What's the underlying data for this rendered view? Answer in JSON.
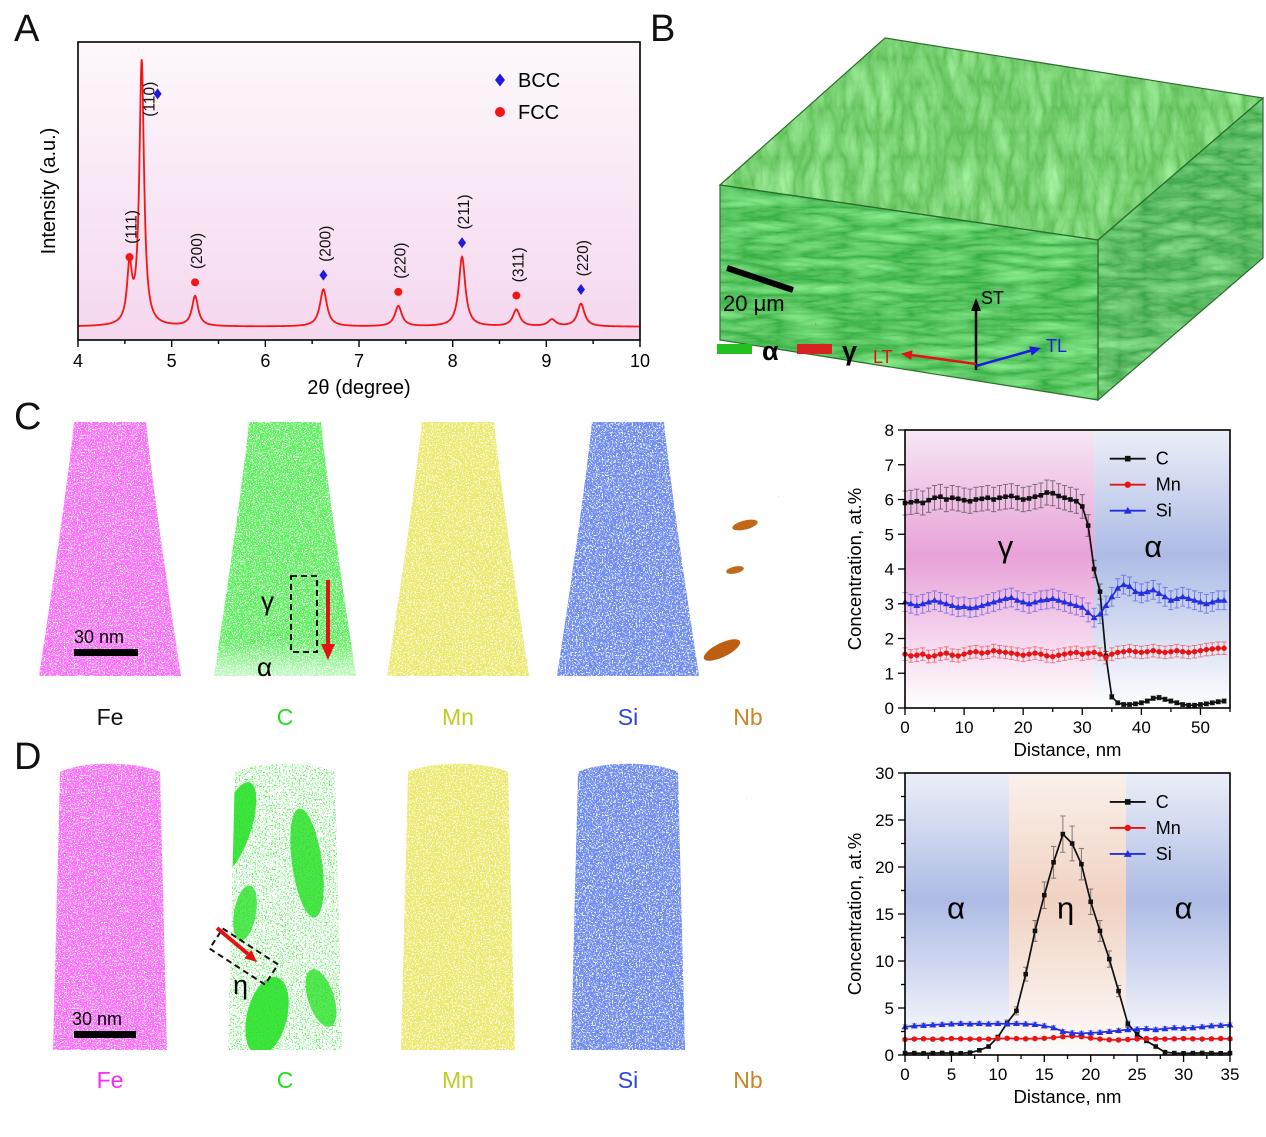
{
  "panels": {
    "a": {
      "letter": "A"
    },
    "b": {
      "letter": "B",
      "scale_bar_label": "20 μm",
      "phase_legend": [
        {
          "label": "α",
          "color": "#22c122"
        },
        {
          "label": "γ",
          "color": "#d82222"
        }
      ],
      "axis_labels": {
        "up": "ST",
        "left": "LT",
        "right": "TL"
      },
      "axis_colors": {
        "up": "#000000",
        "left": "#e01414",
        "right": "#1c1cdf"
      }
    },
    "c": {
      "letter": "C",
      "scale_bar_label": "30 nm",
      "maps": [
        {
          "element": "Fe",
          "color": "#f émotion92bf9"
        },
        {
          "element": "C",
          "color": "#1fe01f"
        },
        {
          "element": "Mn",
          "color": "#bfcc22"
        },
        {
          "element": "Si",
          "color": "#2b46dd"
        },
        {
          "element": "Nb",
          "color": "#cc8426"
        }
      ],
      "map_annotations": {
        "gamma": "γ",
        "alpha": "α"
      }
    },
    "d": {
      "letter": "D",
      "scale_bar_label": "30 nm",
      "maps": [
        {
          "element": "Fe",
          "color": "#f92bf9"
        },
        {
          "element": "C",
          "color": "#1fe01f"
        },
        {
          "element": "Mn",
          "color": "#bfcc22"
        },
        {
          "element": "Si",
          "color": "#2b46dd"
        },
        {
          "element": "Nb",
          "color": "#cc8426"
        }
      ],
      "map_annotations": {
        "eta": "η"
      }
    }
  },
  "chart_data": [
    {
      "id": "xrd",
      "type": "line",
      "panel": "A",
      "title": "",
      "xlabel": "2θ (degree)",
      "ylabel": "Intensity (a.u.)",
      "xlim": [
        4,
        10
      ],
      "xtick": 1,
      "xminor": 0.5,
      "line_color": "#f51515",
      "bg_gradient": [
        "#fdf8fc",
        "#f5d7ee"
      ],
      "baseline": 0.022,
      "legend": [
        {
          "label": "BCC",
          "marker": "diamond",
          "color": "#1c1cdf"
        },
        {
          "label": "FCC",
          "marker": "circle",
          "color": "#f51515"
        }
      ],
      "peaks": [
        {
          "two_theta": 4.55,
          "height": 0.23,
          "width": 0.032,
          "hkl": "(111)",
          "phase": "FCC"
        },
        {
          "two_theta": 4.68,
          "height": 1.1,
          "width": 0.03,
          "hkl": "(110)",
          "phase": "BCC",
          "mdx": 0.17,
          "mv": 0.97,
          "ldx": 0.06,
          "lv": 0.875
        },
        {
          "two_theta": 5.25,
          "height": 0.125,
          "width": 0.04,
          "hkl": "(200)",
          "phase": "FCC"
        },
        {
          "two_theta": 6.62,
          "height": 0.155,
          "width": 0.045,
          "hkl": "(200)",
          "phase": "BCC"
        },
        {
          "two_theta": 7.42,
          "height": 0.085,
          "width": 0.045,
          "hkl": "(220)",
          "phase": "FCC"
        },
        {
          "two_theta": 8.1,
          "height": 0.29,
          "width": 0.042,
          "hkl": "(211)",
          "phase": "BCC"
        },
        {
          "two_theta": 8.68,
          "height": 0.07,
          "width": 0.045,
          "hkl": "(311)",
          "phase": "FCC"
        },
        {
          "two_theta": 9.06,
          "height": 0.028,
          "width": 0.05,
          "hkl": "",
          "phase": ""
        },
        {
          "two_theta": 9.37,
          "height": 0.095,
          "width": 0.045,
          "hkl": "(220)",
          "phase": "BCC"
        }
      ]
    },
    {
      "id": "profile_c",
      "type": "line",
      "panel": "C",
      "xlabel": "Distance, nm",
      "ylabel": "Concentration, at.%",
      "xlim": [
        0,
        55
      ],
      "ylim": [
        0,
        8
      ],
      "xtick": 10,
      "xminor": 5,
      "ytick": 1,
      "x_step": 1,
      "regions": [
        {
          "label": "γ",
          "from": 0,
          "to": 32,
          "label_x": 17,
          "label_y": 4.35,
          "colors": [
            "#f6e7f3",
            "#e8a2d8",
            "#ffffff"
          ]
        },
        {
          "label": "α",
          "from": 32,
          "to": 55,
          "label_x": 42,
          "label_y": 4.35,
          "colors": [
            "#eceff8",
            "#adbbe5",
            "#ffffff"
          ]
        }
      ],
      "series": [
        {
          "name": "C",
          "marker": "square",
          "color": "#111111",
          "err_const": 0.05,
          "err_frac": 0.05,
          "values": [
            5.9,
            5.92,
            5.95,
            5.9,
            5.98,
            6.05,
            6.08,
            6.0,
            6.05,
            6.02,
            5.98,
            5.95,
            6.0,
            6.02,
            6.05,
            6.0,
            6.05,
            6.08,
            6.1,
            6.05,
            6.0,
            6.03,
            6.08,
            6.12,
            6.2,
            6.18,
            6.1,
            6.05,
            6.0,
            5.95,
            5.8,
            5.25,
            4.0,
            3.35,
            1.5,
            0.32,
            0.15,
            0.1,
            0.1,
            0.12,
            0.15,
            0.2,
            0.28,
            0.3,
            0.25,
            0.2,
            0.15,
            0.1,
            0.08,
            0.08,
            0.1,
            0.12,
            0.15,
            0.18,
            0.2
          ]
        },
        {
          "name": "Mn",
          "marker": "circle",
          "color": "#e81414",
          "err_const": 0.18,
          "values": [
            1.55,
            1.5,
            1.52,
            1.55,
            1.48,
            1.5,
            1.55,
            1.58,
            1.52,
            1.5,
            1.55,
            1.6,
            1.62,
            1.58,
            1.6,
            1.65,
            1.62,
            1.6,
            1.58,
            1.55,
            1.52,
            1.55,
            1.58,
            1.55,
            1.5,
            1.48,
            1.52,
            1.55,
            1.58,
            1.6,
            1.55,
            1.58,
            1.6,
            1.55,
            1.45,
            1.55,
            1.6,
            1.62,
            1.65,
            1.62,
            1.6,
            1.62,
            1.65,
            1.62,
            1.6,
            1.62,
            1.65,
            1.62,
            1.6,
            1.62,
            1.65,
            1.68,
            1.7,
            1.72,
            1.72
          ]
        },
        {
          "name": "Si",
          "marker": "triangle",
          "color": "#2430e0",
          "err_const": 0.27,
          "values": [
            3.05,
            3.0,
            2.95,
            3.0,
            3.05,
            3.1,
            3.05,
            3.0,
            2.95,
            2.9,
            2.92,
            2.88,
            2.9,
            2.95,
            3.0,
            3.05,
            3.1,
            3.15,
            3.18,
            3.1,
            3.05,
            3.0,
            3.05,
            3.1,
            3.12,
            3.15,
            3.1,
            3.05,
            3.0,
            2.95,
            2.9,
            2.75,
            2.6,
            2.7,
            2.95,
            3.2,
            3.45,
            3.55,
            3.5,
            3.35,
            3.3,
            3.35,
            3.4,
            3.3,
            3.2,
            3.1,
            3.15,
            3.2,
            3.15,
            3.1,
            3.05,
            3.0,
            3.05,
            3.1,
            3.1
          ]
        }
      ]
    },
    {
      "id": "profile_d",
      "type": "line",
      "panel": "D",
      "xlabel": "Distance, nm",
      "ylabel": "Concentration, at.%",
      "xlim": [
        0,
        35
      ],
      "ylim": [
        0,
        30
      ],
      "xtick": 5,
      "xminor": 2.5,
      "ytick": 5,
      "yminor": 2.5,
      "x_step": 1,
      "regions": [
        {
          "label": "α",
          "from": 0,
          "to": 11.2,
          "label_x": 5.5,
          "label_y": 14.5,
          "colors": [
            "#eceff8",
            "#adbbe5",
            "#ffffff"
          ]
        },
        {
          "label": "η",
          "from": 11.2,
          "to": 23.8,
          "label_x": 17.3,
          "label_y": 14.5,
          "colors": [
            "#faf1ec",
            "#f0d2c2",
            "#fdfbfa"
          ]
        },
        {
          "label": "α",
          "from": 23.8,
          "to": 35,
          "label_x": 30,
          "label_y": 14.5,
          "colors": [
            "#eceff8",
            "#adbbe5",
            "#ffffff"
          ]
        }
      ],
      "series": [
        {
          "name": "C",
          "marker": "square",
          "color": "#111111",
          "err_const": 0.05,
          "err_frac": 0.08,
          "values": [
            0.2,
            0.2,
            0.18,
            0.2,
            0.22,
            0.2,
            0.18,
            0.25,
            0.5,
            0.9,
            1.9,
            3.4,
            4.7,
            8.6,
            13.2,
            17.0,
            20.5,
            23.5,
            22.5,
            20.3,
            16.3,
            13.2,
            10.2,
            6.8,
            3.3,
            2.2,
            1.5,
            0.9,
            0.3,
            0.2,
            0.18,
            0.2,
            0.22,
            0.2,
            0.18,
            0.2
          ]
        },
        {
          "name": "Mn",
          "marker": "circle",
          "color": "#e81414",
          "err_const": 0.15,
          "values": [
            1.65,
            1.7,
            1.72,
            1.68,
            1.7,
            1.75,
            1.72,
            1.7,
            1.68,
            1.7,
            1.75,
            1.78,
            1.75,
            1.72,
            1.75,
            1.78,
            1.85,
            1.95,
            2.0,
            1.95,
            1.8,
            1.7,
            1.62,
            1.6,
            1.65,
            1.7,
            1.75,
            1.72,
            1.7,
            1.72,
            1.75,
            1.72,
            1.7,
            1.72,
            1.75,
            1.72
          ]
        },
        {
          "name": "Si",
          "marker": "triangle",
          "color": "#2430e0",
          "err_const": 0.22,
          "values": [
            3.0,
            3.1,
            3.15,
            3.2,
            3.25,
            3.3,
            3.35,
            3.3,
            3.35,
            3.3,
            3.35,
            3.3,
            3.35,
            3.3,
            3.25,
            3.1,
            2.9,
            2.5,
            2.35,
            2.3,
            2.35,
            2.4,
            2.5,
            2.6,
            2.7,
            2.75,
            2.8,
            2.7,
            2.8,
            2.9,
            2.85,
            2.9,
            3.0,
            3.1,
            3.15,
            3.2
          ]
        }
      ]
    }
  ]
}
